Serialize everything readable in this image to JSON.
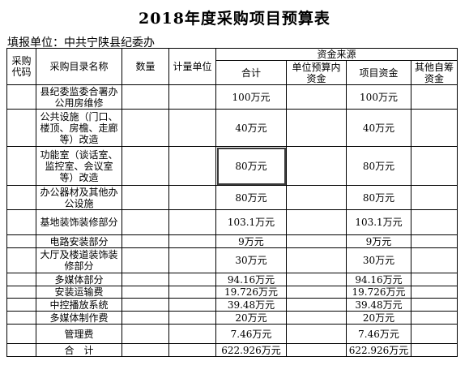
{
  "title": "2018年度采购项目预算表",
  "unit": "填报单位：中共宁陕县纪委办",
  "headers": {
    "code": "采购代码",
    "name": "采购目录名称",
    "qty": "数量",
    "measure": "计量单位",
    "funds": "资金来源",
    "total": "合计",
    "budget": "单位预算内资金",
    "project": "项目资金",
    "self": "其他自筹资金"
  },
  "rows": [
    {
      "name": "县纪委监委合署办公用房维修",
      "total": "100万元",
      "budget": "",
      "project": "100万元",
      "self": ""
    },
    {
      "name": "公共设施（门口、楼顶、房檐、走廊等）改造",
      "total": "40万元",
      "budget": "",
      "project": "40万元",
      "self": ""
    },
    {
      "name": "功能室（谈话室、监控室、会议室等）改造",
      "total": "80万元",
      "budget": "",
      "project": "80万元",
      "self": ""
    },
    {
      "name": "办公器材及其他办公设施",
      "total": "80万元",
      "budget": "",
      "project": "80万元",
      "self": ""
    },
    {
      "name": "基地装饰装修部分",
      "total": "103.1万元",
      "budget": "",
      "project": "103.1万元",
      "self": ""
    },
    {
      "name": "电路安装部分",
      "total": "9万元",
      "budget": "",
      "project": "9万元",
      "self": ""
    },
    {
      "name": "大厅及楼道装饰装修部分",
      "total": "30万元",
      "budget": "",
      "project": "30万元",
      "self": ""
    },
    {
      "name": "多媒体部分",
      "total": "94.16万元",
      "budget": "",
      "project": "94.16万元",
      "self": ""
    },
    {
      "name": "安装运输费",
      "total": "19.726万元",
      "budget": "",
      "project": "19.726万元",
      "self": ""
    },
    {
      "name": "中控播放系统",
      "total": "39.48万元",
      "budget": "",
      "project": "39.48万元",
      "self": ""
    },
    {
      "name": "多媒体制作费",
      "total": "20万元",
      "budget": "",
      "project": "20万元",
      "self": ""
    },
    {
      "name": "管理费",
      "total": "7.46万元",
      "budget": "",
      "project": "7.46万元",
      "self": ""
    }
  ],
  "footer": {
    "label": "合　计",
    "total": "622.926万元",
    "budget": "",
    "project": "622.926万元",
    "self": ""
  }
}
